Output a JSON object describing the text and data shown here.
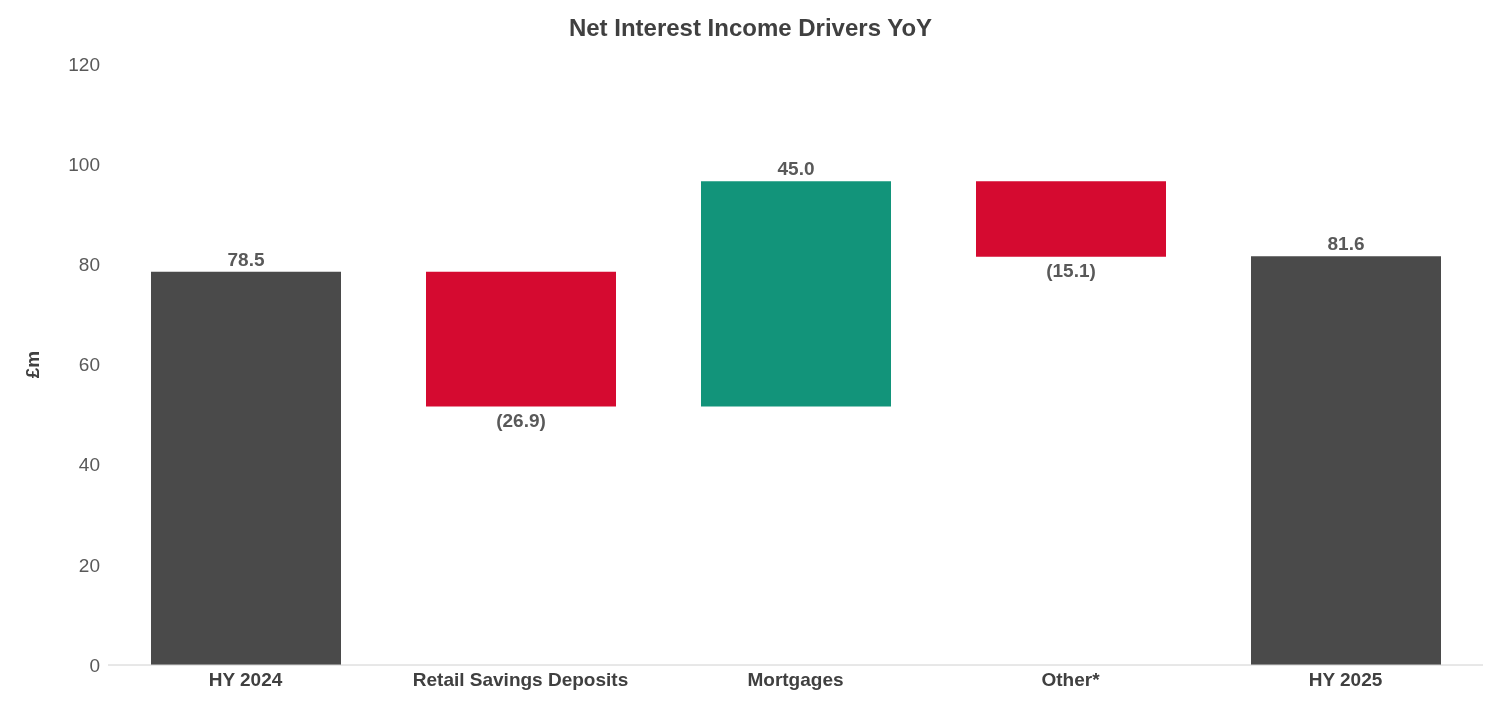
{
  "chart_data": {
    "type": "bar",
    "title": "Net Interest Income Drivers YoY",
    "ylabel": "£m",
    "categories": [
      "HY 2024",
      "Retail Savings Deposits",
      "Mortgages",
      "Other*",
      "HY 2025"
    ],
    "values": [
      78.5,
      -26.9,
      45.0,
      -15.1,
      81.6
    ],
    "base": [
      0,
      78.5,
      51.6,
      96.6,
      0
    ],
    "colors": [
      "#4a4a4a",
      "#d50a30",
      "#12947a",
      "#d50a30",
      "#4a4a4a"
    ],
    "value_labels": [
      "78.5",
      "(26.9)",
      "45.0",
      "(15.1)",
      "81.6"
    ],
    "ylim": [
      0,
      120
    ],
    "yticks": [
      0,
      20,
      40,
      60,
      80,
      100,
      120
    ],
    "grid": false,
    "legend": false
  }
}
